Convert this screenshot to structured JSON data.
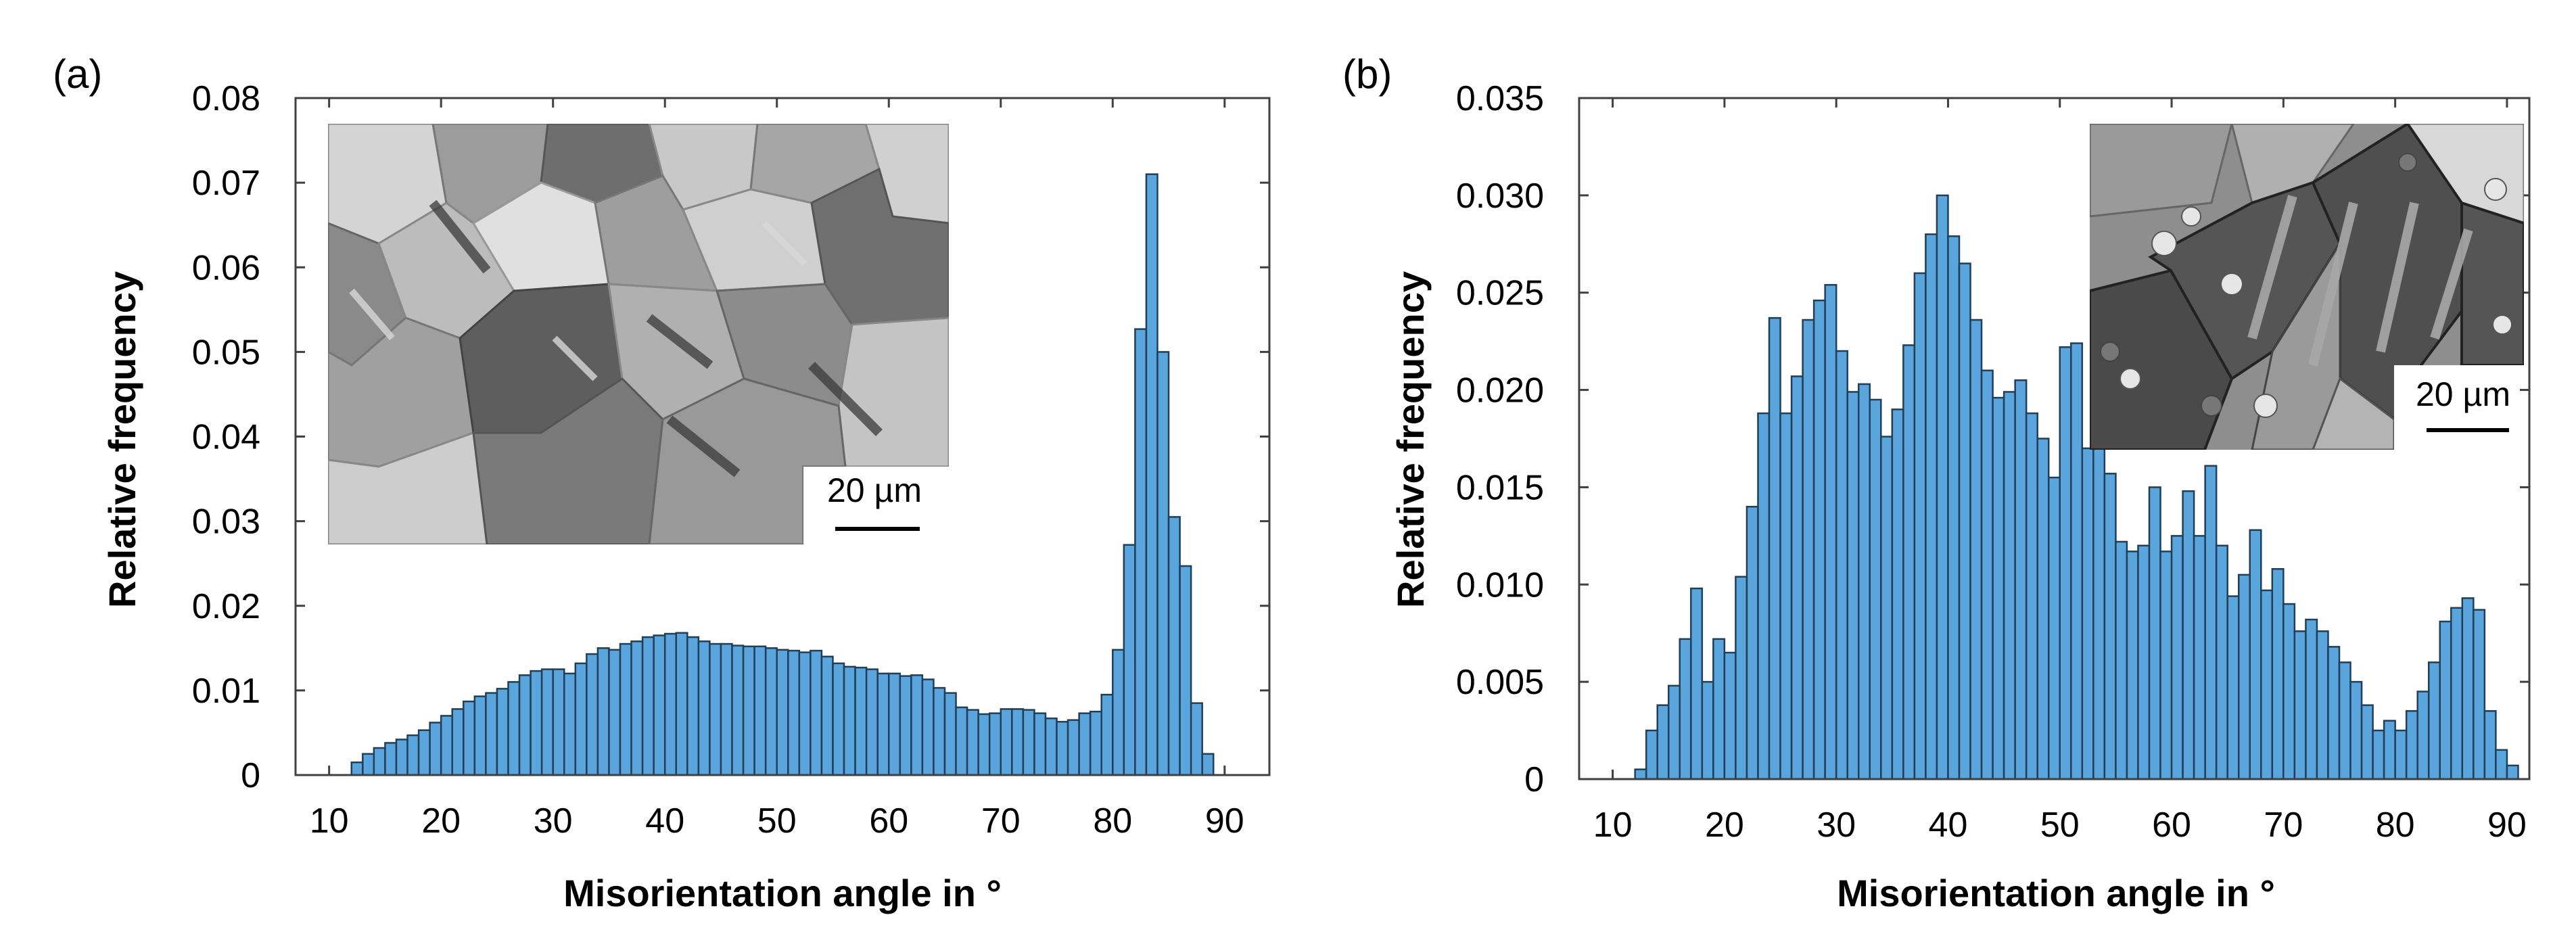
{
  "colors": {
    "bar_fill": "#5aa5db",
    "bar_stroke": "#1f3f5a",
    "axis": "#404040"
  },
  "chart_data": [
    {
      "panel": "(a)",
      "type": "bar",
      "xlabel": "Misorientation angle in °",
      "ylabel": "Relative frequency",
      "xlim": [
        7,
        94
      ],
      "ylim": [
        0,
        0.08
      ],
      "xticks": [
        10,
        20,
        30,
        40,
        50,
        60,
        70,
        80,
        90
      ],
      "xtick_labels": [
        "10",
        "20",
        "30",
        "40",
        "50",
        "60",
        "70",
        "80",
        "90"
      ],
      "yticks": [
        0,
        0.01,
        0.02,
        0.03,
        0.04,
        0.05,
        0.06,
        0.07,
        0.08
      ],
      "ytick_labels": [
        "0",
        "0.01",
        "0.02",
        "0.03",
        "0.04",
        "0.05",
        "0.06",
        "0.07",
        "0.08"
      ],
      "bin_width": 1,
      "bin_start": 12,
      "values": [
        0.0015,
        0.0025,
        0.0032,
        0.0038,
        0.0042,
        0.0047,
        0.0053,
        0.0062,
        0.007,
        0.0078,
        0.0087,
        0.0093,
        0.0097,
        0.0102,
        0.011,
        0.0118,
        0.0123,
        0.0125,
        0.0125,
        0.012,
        0.0132,
        0.0143,
        0.015,
        0.0148,
        0.0155,
        0.0158,
        0.0163,
        0.0165,
        0.0167,
        0.0168,
        0.0163,
        0.0158,
        0.0155,
        0.0155,
        0.0153,
        0.0152,
        0.0152,
        0.015,
        0.0148,
        0.0147,
        0.0145,
        0.0147,
        0.014,
        0.0132,
        0.0128,
        0.0127,
        0.0125,
        0.012,
        0.012,
        0.0117,
        0.0118,
        0.0113,
        0.0103,
        0.0097,
        0.008,
        0.0077,
        0.0072,
        0.0073,
        0.0078,
        0.0078,
        0.0077,
        0.0073,
        0.0067,
        0.0063,
        0.0065,
        0.0073,
        0.0075,
        0.0095,
        0.0148,
        0.0272,
        0.0527,
        0.071,
        0.05,
        0.0305,
        0.0247,
        0.0085,
        0.0025
      ],
      "inset": {
        "scale_bar": "20 µm",
        "description": "EBSD micrograph"
      }
    },
    {
      "panel": "(b)",
      "type": "bar",
      "xlabel": "Misorientation angle in °",
      "ylabel": "Relative frequency",
      "xlim": [
        7,
        92
      ],
      "ylim": [
        0,
        0.035
      ],
      "xticks": [
        10,
        20,
        30,
        40,
        50,
        60,
        70,
        80,
        90
      ],
      "xtick_labels": [
        "10",
        "20",
        "30",
        "40",
        "50",
        "60",
        "70",
        "80",
        "90"
      ],
      "yticks": [
        0,
        0.005,
        0.01,
        0.015,
        0.02,
        0.025,
        0.03,
        0.035
      ],
      "ytick_labels": [
        "0",
        "0.005",
        "0.010",
        "0.015",
        "0.020",
        "0.025",
        "0.030",
        "0.035"
      ],
      "bin_width": 1,
      "bin_start": 12,
      "values": [
        0.0005,
        0.0025,
        0.0038,
        0.0048,
        0.0072,
        0.0098,
        0.005,
        0.0072,
        0.0065,
        0.0104,
        0.014,
        0.0188,
        0.0237,
        0.0188,
        0.0207,
        0.0236,
        0.0246,
        0.0254,
        0.022,
        0.0199,
        0.0203,
        0.0195,
        0.0176,
        0.019,
        0.0223,
        0.026,
        0.028,
        0.03,
        0.0279,
        0.0265,
        0.0236,
        0.021,
        0.0196,
        0.0199,
        0.0205,
        0.0188,
        0.0175,
        0.0155,
        0.0222,
        0.0224,
        0.017,
        0.0178,
        0.0157,
        0.0122,
        0.0117,
        0.012,
        0.015,
        0.0117,
        0.0125,
        0.0148,
        0.0125,
        0.0161,
        0.012,
        0.0094,
        0.0105,
        0.0128,
        0.0097,
        0.0108,
        0.009,
        0.0076,
        0.0082,
        0.0076,
        0.0068,
        0.006,
        0.005,
        0.0038,
        0.0025,
        0.003,
        0.0025,
        0.0035,
        0.0045,
        0.006,
        0.0081,
        0.0088,
        0.0093,
        0.0087,
        0.0035,
        0.0015,
        0.0007
      ],
      "inset": {
        "scale_bar": "20 µm",
        "description": "EBSD micrograph"
      }
    }
  ]
}
